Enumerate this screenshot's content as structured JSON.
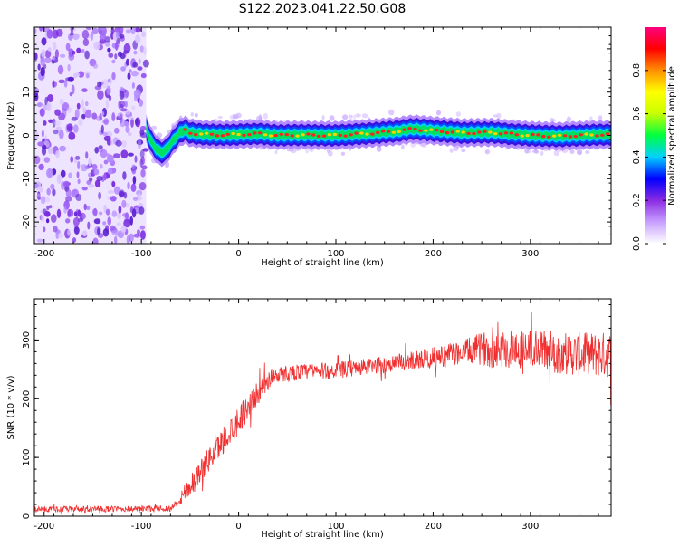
{
  "title": "S122.2023.041.22.50.G08",
  "colorbar": {
    "label": "Normalized spectral amplitude",
    "ticks": [
      "0.0",
      "0.2",
      "0.4",
      "0.6",
      "0.8"
    ],
    "range": [
      0,
      1
    ],
    "colors": [
      "#ffffff",
      "#c8a0ff",
      "#8a2be2",
      "#0000ff",
      "#00d0ff",
      "#00ff40",
      "#c8ff00",
      "#ffff00",
      "#ff9000",
      "#ff0000",
      "#ff0080"
    ]
  },
  "chart_data": [
    {
      "type": "heatmap",
      "xlabel": "Height of straight line (km)",
      "ylabel": "Frequency (Hz)",
      "xlim": [
        -210,
        383
      ],
      "ylim": [
        -25,
        25
      ],
      "xticks": [
        "-200",
        "-100",
        "0",
        "100",
        "200",
        "300"
      ],
      "yticks": [
        "-20",
        "-10",
        "0",
        "10",
        "20"
      ],
      "noise_region_x": [
        -210,
        -95
      ],
      "ridge": [
        [
          -95,
          1.5
        ],
        [
          -90,
          -1.5
        ],
        [
          -85,
          -3
        ],
        [
          -80,
          -4
        ],
        [
          -75,
          -3.5
        ],
        [
          -70,
          -2
        ],
        [
          -65,
          -0.5
        ],
        [
          -60,
          0.8
        ],
        [
          -55,
          1.2
        ],
        [
          -50,
          0.6
        ],
        [
          -40,
          0.3
        ],
        [
          -20,
          0.1
        ],
        [
          0,
          0.2
        ],
        [
          20,
          0.4
        ],
        [
          40,
          0
        ],
        [
          60,
          0.1
        ],
        [
          100,
          0
        ],
        [
          130,
          0.4
        ],
        [
          160,
          0.9
        ],
        [
          180,
          1.5
        ],
        [
          200,
          1.1
        ],
        [
          230,
          0.6
        ],
        [
          260,
          0.7
        ],
        [
          280,
          0.3
        ],
        [
          300,
          0
        ],
        [
          330,
          -0.2
        ],
        [
          360,
          0.1
        ],
        [
          383,
          0.2
        ]
      ]
    },
    {
      "type": "line",
      "xlabel": "Height of straight line (km)",
      "ylabel": "SNR (10 * v/v)",
      "xlim": [
        -210,
        383
      ],
      "ylim": [
        0,
        370
      ],
      "xticks": [
        "-200",
        "-100",
        "0",
        "100",
        "200",
        "300"
      ],
      "yticks": [
        "0",
        "100",
        "200",
        "300"
      ],
      "series_color": "#f03030",
      "envelope": [
        [
          -210,
          12
        ],
        [
          -150,
          12
        ],
        [
          -70,
          13
        ],
        [
          -60,
          30
        ],
        [
          -40,
          75
        ],
        [
          -20,
          120
        ],
        [
          0,
          165
        ],
        [
          20,
          210
        ],
        [
          35,
          240
        ],
        [
          60,
          245
        ],
        [
          100,
          248
        ],
        [
          150,
          258
        ],
        [
          200,
          270
        ],
        [
          250,
          285
        ],
        [
          300,
          285
        ],
        [
          350,
          275
        ],
        [
          383,
          275
        ]
      ],
      "noise_amplitude": [
        [
          -210,
          5
        ],
        [
          -65,
          5
        ],
        [
          -55,
          18
        ],
        [
          0,
          25
        ],
        [
          40,
          14
        ],
        [
          150,
          14
        ],
        [
          230,
          20
        ],
        [
          260,
          32
        ],
        [
          383,
          40
        ]
      ]
    }
  ]
}
